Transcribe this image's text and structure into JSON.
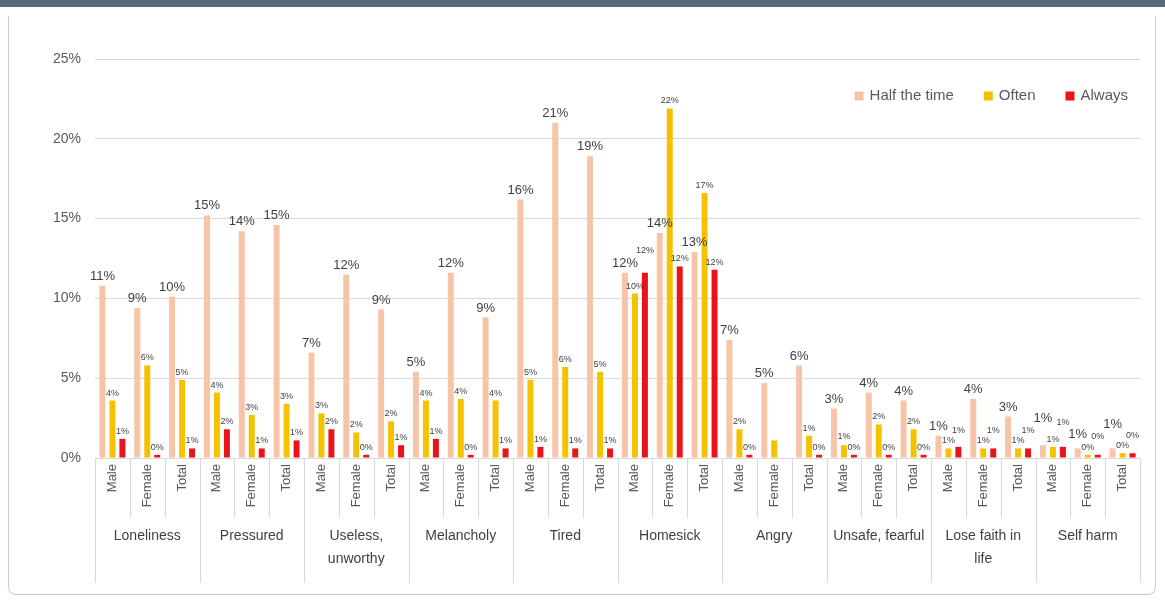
{
  "chart_data": {
    "type": "bar",
    "categories": [
      "Male",
      "Female",
      "Total",
      "Male",
      "Female",
      "Total",
      "Male",
      "Female",
      "Total",
      "Male",
      "Female",
      "Total",
      "Male",
      "Female",
      "Total",
      "Male",
      "Female",
      "Total",
      "Male",
      "Female",
      "Total",
      "Male",
      "Female",
      "Total",
      "Male",
      "Female",
      "Total",
      "Male",
      "Female",
      "Total"
    ],
    "series": [
      {
        "name": "Half the time",
        "color": "#f8c4a8",
        "values": [
          10.8,
          9.4,
          10.1,
          15.2,
          14.2,
          14.6,
          6.6,
          11.5,
          9.3,
          5.4,
          11.6,
          8.8,
          16.2,
          21.0,
          18.9,
          11.6,
          14.1,
          12.9,
          7.4,
          4.7,
          5.8,
          3.1,
          4.1,
          3.6,
          1.4,
          3.7,
          2.6,
          0.8,
          0.6,
          0.6
        ],
        "value_labels": [
          "11%",
          "9%",
          "10%",
          "15%",
          "14%",
          "15%",
          "7%",
          "12%",
          "9%",
          "5%",
          "12%",
          "9%",
          "16%",
          "21%",
          "19%",
          "12%",
          "14%",
          "13%",
          "7%",
          "5%",
          "6%",
          "3%",
          "4%",
          "4%",
          "1%",
          "4%",
          "3%",
          "1%",
          "1%",
          "1%"
        ]
      },
      {
        "name": "Often",
        "color": "#f4c200",
        "values": [
          3.6,
          5.8,
          4.9,
          4.1,
          2.7,
          3.4,
          2.8,
          1.6,
          2.3,
          3.6,
          3.7,
          3.6,
          4.9,
          5.7,
          5.4,
          10.3,
          21.9,
          16.6,
          1.8,
          1.1,
          1.4,
          0.8,
          2.1,
          1.8,
          0.6,
          0.6,
          0.6,
          0.7,
          0.2,
          0.3
        ],
        "value_labels": [
          "4%",
          "6%",
          "5%",
          "4%",
          "3%",
          "3%",
          "3%",
          "2%",
          "2%",
          "4%",
          "4%",
          "4%",
          "5%",
          "6%",
          "5%",
          "10%",
          "22%",
          "17%",
          "2%",
          null,
          "1%",
          "1%",
          "2%",
          "2%",
          "1%",
          "1%",
          "1%",
          "1%",
          "0%",
          "0%"
        ]
      },
      {
        "name": "Always",
        "color": "#e8141c",
        "values": [
          1.2,
          0.2,
          0.6,
          1.8,
          0.6,
          1.1,
          1.8,
          0.2,
          0.8,
          1.2,
          0.2,
          0.6,
          0.7,
          0.6,
          0.6,
          11.6,
          12.0,
          11.8,
          0.2,
          null,
          0.2,
          0.2,
          0.2,
          0.2,
          0.7,
          0.6,
          0.6,
          0.7,
          0.2,
          0.3
        ],
        "value_labels": [
          "1%",
          "0%",
          "1%",
          "2%",
          "1%",
          "1%",
          "2%",
          "0%",
          "1%",
          "1%",
          "0%",
          "1%",
          "1%",
          "1%",
          "1%",
          "12%",
          "12%",
          "12%",
          "0%",
          null,
          "0%",
          "0%",
          "0%",
          "0%",
          "1%",
          "1%",
          "1%",
          "1%",
          "0%",
          "0%"
        ]
      }
    ],
    "ylim": [
      0,
      25
    ],
    "yticks": [
      {
        "value": 0,
        "label": "0%"
      },
      {
        "value": 5,
        "label": "5%"
      },
      {
        "value": 10,
        "label": "10%"
      },
      {
        "value": 15,
        "label": "15%"
      },
      {
        "value": 20,
        "label": "20%"
      },
      {
        "value": 25,
        "label": "25%"
      }
    ],
    "grid": "y",
    "legend": "top right",
    "annotations": [
      "Loneliness",
      "Pressured",
      "Useless, unworthy",
      "Melancholy",
      "Tired",
      "Homesick",
      "Angry",
      "Unsafe, fearful",
      "Lose faith in life",
      "Self harm"
    ]
  }
}
